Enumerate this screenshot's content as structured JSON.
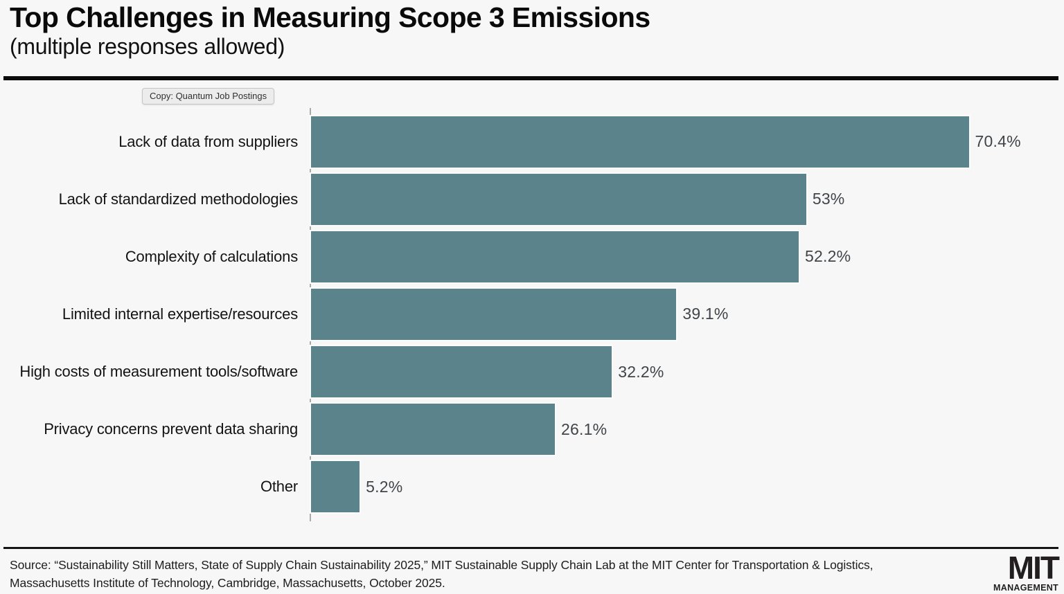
{
  "header": {
    "title": "Top Challenges in Measuring Scope 3 Emissions",
    "subtitle": "(multiple responses allowed)"
  },
  "tooltip": {
    "label": "Copy: Quantum Job Postings"
  },
  "chart_data": {
    "type": "bar",
    "orientation": "horizontal",
    "title": "Top Challenges in Measuring Scope 3 Emissions",
    "subtitle": "(multiple responses allowed)",
    "categories": [
      "Lack of data from suppliers",
      "Lack of standardized methodologies",
      "Complexity of calculations",
      "Limited internal expertise/resources",
      "High costs of measurement tools/software",
      "Privacy concerns prevent data sharing",
      "Other"
    ],
    "values": [
      70.4,
      53,
      52.2,
      39.1,
      32.2,
      26.1,
      5.2
    ],
    "value_labels": [
      "70.4%",
      "53%",
      "52.2%",
      "39.1%",
      "32.2%",
      "26.1%",
      "5.2%"
    ],
    "xlabel": "",
    "ylabel": "",
    "xlim": [
      0,
      80
    ],
    "grid": false,
    "legend": false,
    "bar_color": "#5a838b",
    "value_label_color": "#40454a",
    "background_color": "#f6f7f6"
  },
  "footer": {
    "source_line1": "Source: “Sustainability Still Matters, State of Supply Chain Sustainability 2025,” MIT Sustainable Supply Chain Lab at the MIT Center for Transportation & Logistics,",
    "source_line2": "Massachusetts Institute of Technology, Cambridge, Massachusetts, October 2025.",
    "logo_top": "MIT",
    "logo_bottom": "MANAGEMENT"
  }
}
